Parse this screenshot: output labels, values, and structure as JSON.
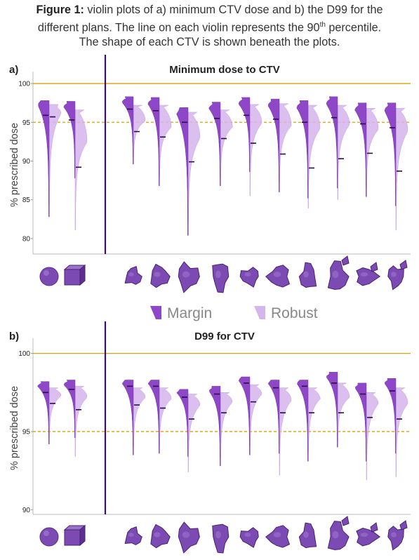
{
  "caption": {
    "bold": "Figure 1:",
    "line1_rest": " violin plots of a) minimum CTV dose and b) the D99 for the",
    "line2_pre": "different plans. The line on each violin represents the 90",
    "line2_sup": "th",
    "line2_post": " percentile.",
    "line3": "The shape of each CTV is shown beneath the plots."
  },
  "colors": {
    "margin": "#8e47c7",
    "robust": "#d5b5ec",
    "ref_line": "#dba200",
    "divider": "#3a0f6e",
    "shape": "#7b4bb3"
  },
  "legend": {
    "margin": "Margin",
    "robust": "Robust"
  },
  "shapes": [
    "sphere-shape",
    "cube-shape",
    "ctv-shape-1",
    "ctv-shape-2",
    "ctv-shape-3",
    "ctv-shape-4",
    "ctv-shape-5",
    "ctv-shape-6",
    "ctv-shape-7",
    "ctv-shape-8",
    "ctv-shape-9",
    "ctv-shape-10"
  ],
  "chart_data": [
    {
      "type": "violin",
      "panel": "a)",
      "title": "Minimum dose to CTV",
      "ylabel": "% prescribed dose",
      "ylim": [
        78,
        101
      ],
      "yticks": [
        80,
        85,
        90,
        95,
        100
      ],
      "reference_lines": [
        {
          "y": 100,
          "style": "solid"
        },
        {
          "y": 95,
          "style": "dashed"
        }
      ],
      "series": [
        {
          "name": "Margin",
          "values": [
            {
              "min": 82.8,
              "max": 97.8,
              "p90": 95.9,
              "mode": 97.3
            },
            {
              "min": 87.8,
              "max": 97.7,
              "p90": 95.3,
              "mode": 97.0
            },
            {
              "min": 89.6,
              "max": 98.3,
              "p90": 96.7,
              "mode": 97.6
            },
            {
              "min": 86.8,
              "max": 98.2,
              "p90": 96.5,
              "mode": 97.4
            },
            {
              "min": 80.4,
              "max": 96.9,
              "p90": 95.0,
              "mode": 96.1
            },
            {
              "min": 86.8,
              "max": 97.6,
              "p90": 95.5,
              "mode": 96.8
            },
            {
              "min": 88.6,
              "max": 98.2,
              "p90": 95.9,
              "mode": 97.4
            },
            {
              "min": 86.0,
              "max": 98.0,
              "p90": 95.4,
              "mode": 97.2
            },
            {
              "min": 85.2,
              "max": 97.8,
              "p90": 95.0,
              "mode": 96.9
            },
            {
              "min": 86.5,
              "max": 98.3,
              "p90": 95.6,
              "mode": 97.4
            },
            {
              "min": 85.4,
              "max": 97.5,
              "p90": 94.8,
              "mode": 96.6
            },
            {
              "min": 84.2,
              "max": 97.5,
              "p90": 94.3,
              "mode": 96.5
            }
          ]
        },
        {
          "name": "Robust",
          "values": [
            {
              "min": 82.8,
              "max": 97.3,
              "p90": 95.7,
              "mode": 96.2
            },
            {
              "min": 81.1,
              "max": 96.6,
              "p90": 89.2,
              "mode": 92.5
            },
            {
              "min": 89.6,
              "max": 97.2,
              "p90": 93.8,
              "mode": 95.2
            },
            {
              "min": 86.8,
              "max": 97.2,
              "p90": 93.1,
              "mode": 94.4
            },
            {
              "min": 80.4,
              "max": 96.3,
              "p90": 89.9,
              "mode": 93.0
            },
            {
              "min": 86.8,
              "max": 96.6,
              "p90": 92.9,
              "mode": 94.4
            },
            {
              "min": 85.5,
              "max": 97.3,
              "p90": 92.3,
              "mode": 94.9
            },
            {
              "min": 86.0,
              "max": 97.4,
              "p90": 90.9,
              "mode": 94.6
            },
            {
              "min": 83.9,
              "max": 97.2,
              "p90": 89.1,
              "mode": 94.2
            },
            {
              "min": 85.0,
              "max": 97.2,
              "p90": 90.3,
              "mode": 94.7
            },
            {
              "min": 85.4,
              "max": 96.8,
              "p90": 91.0,
              "mode": 94.1
            },
            {
              "min": 81.1,
              "max": 96.8,
              "p90": 88.7,
              "mode": 93.9
            }
          ]
        }
      ]
    },
    {
      "type": "violin",
      "panel": "b)",
      "title": "D99 for CTV",
      "ylabel": "% prescribed dose",
      "ylim": [
        89.7,
        100.7
      ],
      "yticks": [
        90,
        95,
        100
      ],
      "reference_lines": [
        {
          "y": 100,
          "style": "solid"
        },
        {
          "y": 95,
          "style": "dashed"
        }
      ],
      "series": [
        {
          "name": "Margin",
          "values": [
            {
              "min": 94.2,
              "max": 98.2,
              "p90": 97.5,
              "mode": 97.9
            },
            {
              "min": 94.6,
              "max": 98.3,
              "p90": 97.7,
              "mode": 98.0
            },
            {
              "min": 93.5,
              "max": 98.3,
              "p90": 97.9,
              "mode": 98.1
            },
            {
              "min": 93.6,
              "max": 98.3,
              "p90": 97.9,
              "mode": 98.1
            },
            {
              "min": 93.4,
              "max": 97.7,
              "p90": 97.2,
              "mode": 97.5
            },
            {
              "min": 92.8,
              "max": 97.9,
              "p90": 97.4,
              "mode": 97.6
            },
            {
              "min": 93.5,
              "max": 98.5,
              "p90": 98.1,
              "mode": 98.3
            },
            {
              "min": 93.6,
              "max": 98.3,
              "p90": 97.8,
              "mode": 98.1
            },
            {
              "min": 93.1,
              "max": 98.3,
              "p90": 97.9,
              "mode": 98.1
            },
            {
              "min": 94.0,
              "max": 98.8,
              "p90": 98.1,
              "mode": 98.5
            },
            {
              "min": 93.1,
              "max": 98.1,
              "p90": 97.4,
              "mode": 97.8
            },
            {
              "min": 93.6,
              "max": 98.4,
              "p90": 97.6,
              "mode": 98.1
            }
          ]
        },
        {
          "name": "Robust",
          "values": [
            {
              "min": 94.2,
              "max": 97.8,
              "p90": 96.8,
              "mode": 97.3
            },
            {
              "min": 93.4,
              "max": 97.9,
              "p90": 96.4,
              "mode": 97.2
            },
            {
              "min": 93.5,
              "max": 97.8,
              "p90": 96.7,
              "mode": 97.2
            },
            {
              "min": 93.6,
              "max": 97.8,
              "p90": 96.5,
              "mode": 97.1
            },
            {
              "min": 92.4,
              "max": 97.4,
              "p90": 95.8,
              "mode": 96.7
            },
            {
              "min": 92.8,
              "max": 97.5,
              "p90": 96.2,
              "mode": 96.9
            },
            {
              "min": 93.5,
              "max": 98.0,
              "p90": 96.9,
              "mode": 97.4
            },
            {
              "min": 92.2,
              "max": 97.8,
              "p90": 96.2,
              "mode": 97.0
            },
            {
              "min": 93.1,
              "max": 97.8,
              "p90": 96.2,
              "mode": 97.1
            },
            {
              "min": 94.0,
              "max": 98.1,
              "p90": 96.2,
              "mode": 97.2
            },
            {
              "min": 91.9,
              "max": 97.5,
              "p90": 95.9,
              "mode": 96.8
            },
            {
              "min": 92.1,
              "max": 97.8,
              "p90": 95.8,
              "mode": 96.8
            }
          ]
        }
      ]
    }
  ]
}
